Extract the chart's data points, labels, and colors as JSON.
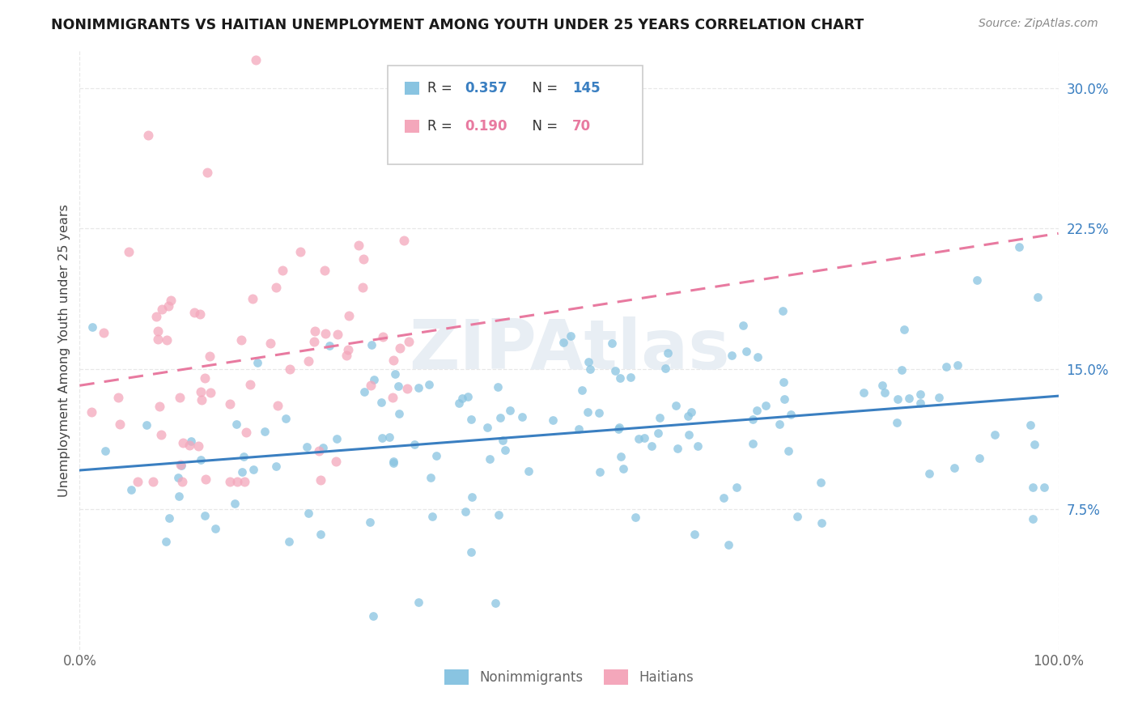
{
  "title": "NONIMMIGRANTS VS HAITIAN UNEMPLOYMENT AMONG YOUTH UNDER 25 YEARS CORRELATION CHART",
  "source": "Source: ZipAtlas.com",
  "ylabel": "Unemployment Among Youth under 25 years",
  "ytick_vals": [
    7.5,
    15.0,
    22.5,
    30.0
  ],
  "ytick_labels": [
    "7.5%",
    "15.0%",
    "22.5%",
    "30.0%"
  ],
  "xtick_labels": [
    "0.0%",
    "100.0%"
  ],
  "xtick_vals": [
    0,
    100
  ],
  "legend1_r": "R = 0.357",
  "legend1_n": "N = 145",
  "legend2_r": "R = 0.190",
  "legend2_n": "N = 70",
  "blue_scatter_color": "#89c4e1",
  "pink_scatter_color": "#f4a7bb",
  "blue_line_color": "#3a7fc1",
  "pink_line_color": "#e87aa0",
  "blue_text_color": "#3a7fc1",
  "pink_text_color": "#e87aa0",
  "watermark_color": "#e8eef4",
  "grid_color": "#e8e8e8",
  "title_color": "#1a1a1a",
  "source_color": "#888888",
  "ylabel_color": "#444444",
  "tick_color": "#666666",
  "legend_box_color": "#cccccc",
  "xlim": [
    0,
    100
  ],
  "ylim": [
    0,
    32
  ],
  "blue_line_x": [
    0,
    100
  ],
  "blue_line_y_start": 8.8,
  "blue_line_y_end": 15.5,
  "pink_line_x": [
    0,
    100
  ],
  "pink_line_y_start": 13.5,
  "pink_line_y_end": 23.5
}
